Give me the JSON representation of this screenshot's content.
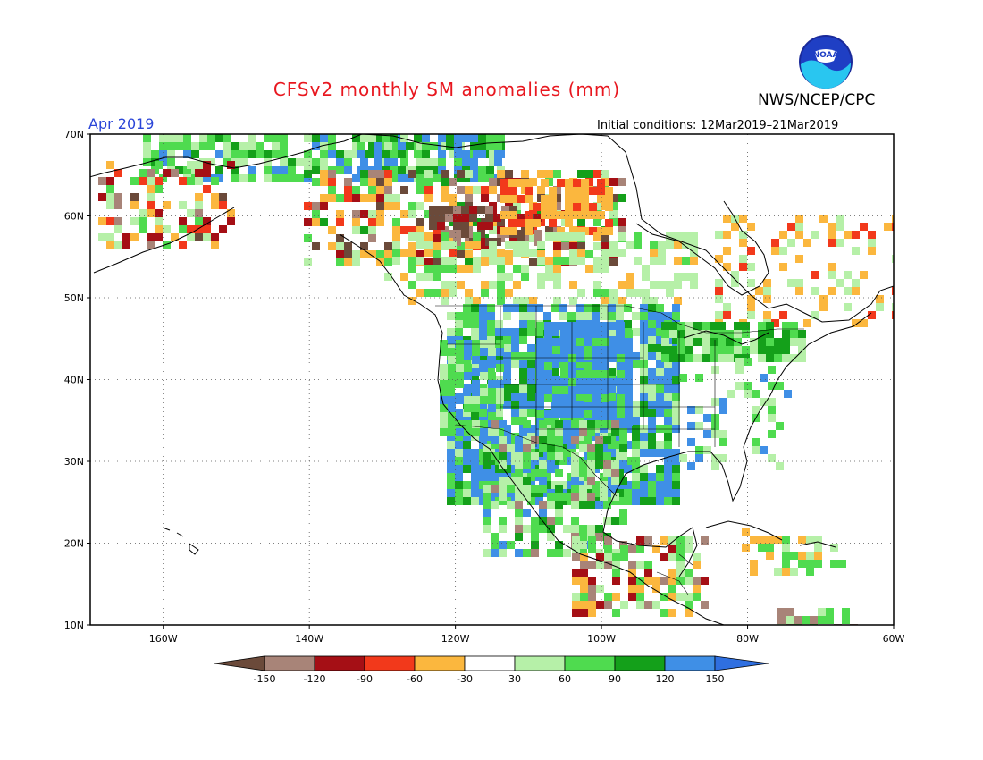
{
  "title": "CFSv2 monthly SM anomalies (mm)",
  "agency": "NWS/NCEP/CPC",
  "logo_text": "NOAA",
  "valid_month": "Apr 2019",
  "initial_conditions": "Initial conditions: 12Mar2019–21Mar2019",
  "lat_labels": [
    "70N",
    "60N",
    "50N",
    "40N",
    "30N",
    "20N",
    "10N"
  ],
  "lon_labels": [
    "160W",
    "140W",
    "120W",
    "100W",
    "80W",
    "60W"
  ],
  "colorbar": {
    "labels": [
      "-150",
      "-120",
      "-90",
      "-60",
      "-30",
      "30",
      "60",
      "90",
      "120",
      "150"
    ],
    "colors": [
      "#6b4a3a",
      "#a88478",
      "#a50f15",
      "#f2391b",
      "#fbb73e",
      "#ffffff",
      "#b6f0a8",
      "#4fdb4f",
      "#14a01a",
      "#3f8fe6",
      "#2f6fe0"
    ]
  },
  "map_extent": {
    "lon": [
      -170,
      -60
    ],
    "lat": [
      10,
      70
    ]
  }
}
